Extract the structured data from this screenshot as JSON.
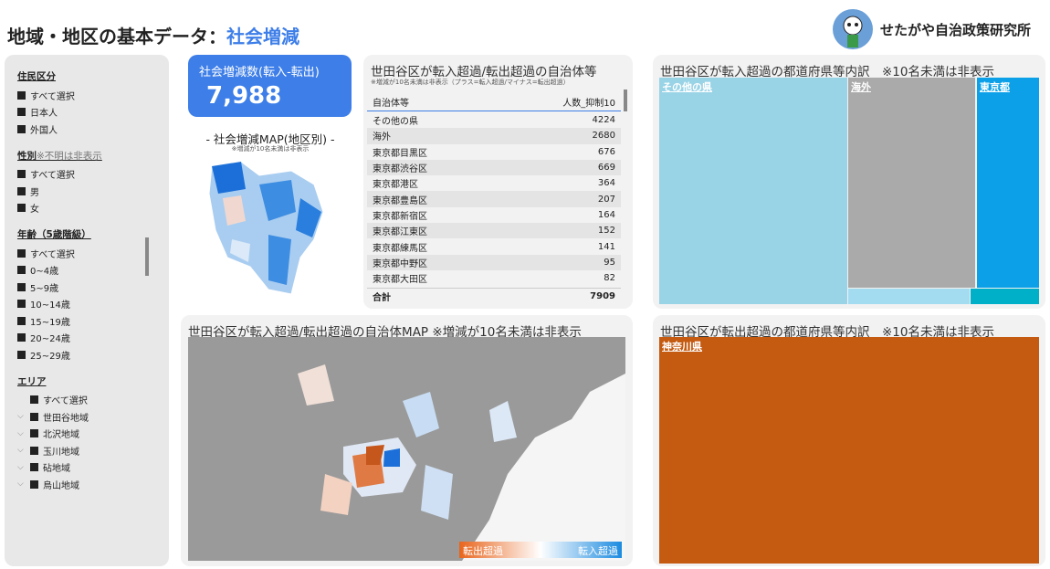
{
  "header": {
    "title": "地域・地区の基本データ：",
    "title_highlight": "社会増減",
    "brand": "せたがや自治政策研究所"
  },
  "filters": [
    {
      "title": "住民区分",
      "items": [
        "すべて選択",
        "日本人",
        "外国人"
      ]
    },
    {
      "title": "性別",
      "note": "※不明は非表示",
      "items": [
        "すべて選択",
        "男",
        "女"
      ]
    },
    {
      "title": "年齢（5歳階級）",
      "items": [
        "すべて選択",
        "0~4歳",
        "5~9歳",
        "10~14歳",
        "15~19歳",
        "20~24歳",
        "25~29歳"
      ]
    },
    {
      "title": "エリア",
      "items": [
        "すべて選択",
        "世田谷地域",
        "北沢地域",
        "玉川地域",
        "砧地域",
        "烏山地域"
      ]
    }
  ],
  "kpi": {
    "label": "社会増減数(転入-転出)",
    "value": "7,988"
  },
  "district_map": {
    "title": "- 社会増減MAP(地区別) -",
    "note": "※増減が10名未満は非表示"
  },
  "table": {
    "title": "世田谷区が転入超過/転出超過の自治体等",
    "note": "※増減が10名未満は非表示（プラス=転入超過/マイナス=転出超過）",
    "columns": [
      "自治体等",
      "人数_抑制10"
    ],
    "rows": [
      [
        "その他の県",
        4224
      ],
      [
        "海外",
        2680
      ],
      [
        "東京都目黒区",
        676
      ],
      [
        "東京都渋谷区",
        669
      ],
      [
        "東京都港区",
        364
      ],
      [
        "東京都豊島区",
        207
      ],
      [
        "東京都新宿区",
        164
      ],
      [
        "東京都江東区",
        152
      ],
      [
        "東京都練馬区",
        141
      ],
      [
        "東京都中野区",
        95
      ],
      [
        "東京都大田区",
        82
      ]
    ],
    "total": [
      "合計",
      7909
    ]
  },
  "map": {
    "title": "世田谷区が転入超過/転出超過の自治体MAP ※増減が10名未満は非表示",
    "legend": [
      "転出超過",
      "転入超過"
    ]
  },
  "treemap_in": {
    "title": "世田谷区が転入超過の都道府県等内訳　※10名未満は非表示",
    "labels": [
      "その他の県",
      "海外",
      "東京都"
    ]
  },
  "treemap_out": {
    "title": "世田谷区が転出超過の都道府県等内訳　※10名未満は非表示",
    "labels": [
      "神奈川県"
    ]
  }
}
